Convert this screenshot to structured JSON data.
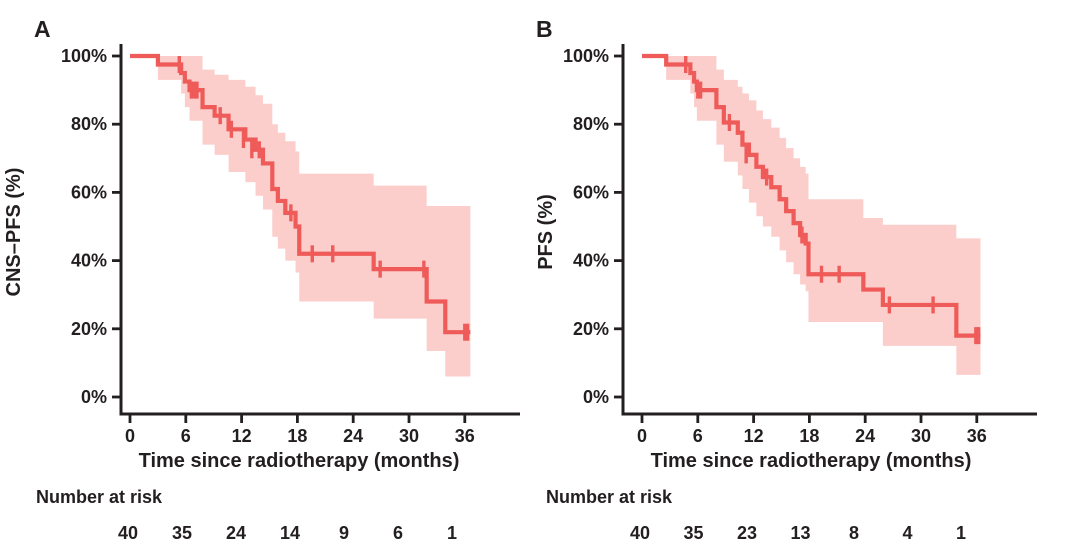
{
  "figure": {
    "background": "#ffffff",
    "description": "Kaplan-Meier survival curves with 95% confidence bands"
  },
  "colors": {
    "curve": "#EE5B59",
    "band": "#FBCDCB",
    "axis": "#231F20",
    "text": "#231F20"
  },
  "chart_data": [
    {
      "type": "line",
      "subtype": "kaplan-meier-step",
      "panel_label": "A",
      "ylabel": "CNS–PFS (%)",
      "xlabel": "Time since radiotherapy (months)",
      "xlim": [
        0,
        38
      ],
      "ylim": [
        0,
        100
      ],
      "x_ticks": [
        0,
        6,
        12,
        18,
        24,
        30,
        36
      ],
      "y_ticks": [
        [
          0,
          "0%"
        ],
        [
          20,
          "20%"
        ],
        [
          40,
          "40%"
        ],
        [
          60,
          "60%"
        ],
        [
          80,
          "80%"
        ],
        [
          100,
          "100%"
        ]
      ],
      "grid": false,
      "legend": "none",
      "end_time": 36.6,
      "steps": [
        [
          0,
          100
        ],
        [
          3,
          97.5
        ],
        [
          5.5,
          95
        ],
        [
          5.9,
          92.5
        ],
        [
          6.4,
          90
        ],
        [
          7.8,
          85
        ],
        [
          9.1,
          82.5
        ],
        [
          10.6,
          78.5
        ],
        [
          12.4,
          75.5
        ],
        [
          13.5,
          72.5
        ],
        [
          14.3,
          68.5
        ],
        [
          15.3,
          61
        ],
        [
          15.9,
          57.5
        ],
        [
          16.7,
          54
        ],
        [
          17.8,
          50
        ],
        [
          18.2,
          42
        ],
        [
          26.2,
          37.5
        ],
        [
          31.9,
          28
        ],
        [
          33.9,
          19
        ]
      ],
      "ci": [
        [
          3,
          93,
          100
        ],
        [
          5.5,
          89,
          100
        ],
        [
          5.9,
          85,
          100
        ],
        [
          6.4,
          81,
          100
        ],
        [
          7.8,
          74,
          96
        ],
        [
          9.1,
          71,
          94.5
        ],
        [
          10.6,
          66,
          93
        ],
        [
          12.4,
          63,
          91
        ],
        [
          13.5,
          59,
          88.5
        ],
        [
          14.3,
          55,
          86
        ],
        [
          15.3,
          47,
          80
        ],
        [
          15.9,
          43.5,
          77.5
        ],
        [
          16.7,
          40,
          75
        ],
        [
          17.8,
          36.5,
          72
        ],
        [
          18.2,
          28,
          65.5
        ],
        [
          26.2,
          23,
          62
        ],
        [
          31.9,
          13.5,
          56
        ],
        [
          33.9,
          6,
          56
        ]
      ],
      "censors": [
        [
          5.3,
          97.5
        ],
        [
          6.6,
          90
        ],
        [
          6.9,
          90
        ],
        [
          7.2,
          90
        ],
        [
          9.7,
          82.5
        ],
        [
          10.9,
          78.5
        ],
        [
          12.2,
          75.5
        ],
        [
          13.1,
          72.5
        ],
        [
          13.9,
          72.5
        ],
        [
          17.3,
          54
        ],
        [
          19.6,
          42
        ],
        [
          21.8,
          42
        ],
        [
          26.9,
          37.5
        ],
        [
          31.6,
          37.5
        ],
        [
          36.0,
          19
        ],
        [
          36.3,
          19
        ]
      ],
      "number_at_risk": {
        "label": "Number at risk",
        "times": [
          0,
          6,
          12,
          18,
          24,
          30,
          36
        ],
        "values": [
          40,
          35,
          24,
          14,
          9,
          6,
          1
        ]
      }
    },
    {
      "type": "line",
      "subtype": "kaplan-meier-step",
      "panel_label": "B",
      "ylabel": "PFS (%)",
      "xlabel": "Time since radiotherapy (months)",
      "xlim": [
        0,
        38
      ],
      "ylim": [
        0,
        100
      ],
      "x_ticks": [
        0,
        6,
        12,
        18,
        24,
        30,
        36
      ],
      "y_ticks": [
        [
          0,
          "0%"
        ],
        [
          20,
          "20%"
        ],
        [
          40,
          "40%"
        ],
        [
          60,
          "60%"
        ],
        [
          80,
          "80%"
        ],
        [
          100,
          "100%"
        ]
      ],
      "grid": false,
      "legend": "none",
      "end_time": 36.4,
      "steps": [
        [
          0,
          100
        ],
        [
          2.6,
          97.5
        ],
        [
          5.2,
          95
        ],
        [
          5.6,
          92.5
        ],
        [
          5.9,
          90
        ],
        [
          8.0,
          85
        ],
        [
          8.8,
          80.5
        ],
        [
          10.3,
          77.5
        ],
        [
          10.8,
          74
        ],
        [
          11.5,
          71
        ],
        [
          12.3,
          67.5
        ],
        [
          13.0,
          64.5
        ],
        [
          13.9,
          61.5
        ],
        [
          14.8,
          58
        ],
        [
          15.5,
          54.5
        ],
        [
          16.3,
          51
        ],
        [
          17.0,
          47.5
        ],
        [
          17.6,
          45
        ],
        [
          17.9,
          36
        ],
        [
          23.8,
          31.5
        ],
        [
          25.9,
          27
        ],
        [
          33.8,
          18
        ]
      ],
      "ci": [
        [
          2.6,
          93,
          100
        ],
        [
          5.2,
          89,
          100
        ],
        [
          5.6,
          85,
          100
        ],
        [
          5.9,
          81,
          100
        ],
        [
          8.0,
          74,
          96
        ],
        [
          8.8,
          69,
          93
        ],
        [
          10.3,
          65,
          91
        ],
        [
          10.8,
          61,
          89
        ],
        [
          11.5,
          57,
          87
        ],
        [
          12.3,
          53,
          84
        ],
        [
          13.0,
          50,
          81.5
        ],
        [
          13.9,
          47,
          79
        ],
        [
          14.8,
          43,
          76
        ],
        [
          15.5,
          39.5,
          73
        ],
        [
          16.3,
          36,
          70
        ],
        [
          17.0,
          33,
          67.5
        ],
        [
          17.6,
          31,
          65.5
        ],
        [
          17.9,
          22,
          58
        ],
        [
          23.8,
          22,
          52.5
        ],
        [
          25.9,
          15,
          50.5
        ],
        [
          33.8,
          6.5,
          46.5
        ]
      ],
      "censors": [
        [
          4.7,
          97.5
        ],
        [
          6.0,
          90
        ],
        [
          6.3,
          90
        ],
        [
          9.4,
          80.5
        ],
        [
          11.2,
          71
        ],
        [
          13.4,
          64.5
        ],
        [
          17.2,
          47.5
        ],
        [
          19.3,
          36
        ],
        [
          21.2,
          36
        ],
        [
          26.6,
          27
        ],
        [
          31.3,
          27
        ],
        [
          35.9,
          18
        ],
        [
          36.2,
          18
        ]
      ],
      "number_at_risk": {
        "label": "Number at risk",
        "times": [
          0,
          6,
          12,
          18,
          24,
          30,
          36
        ],
        "values": [
          40,
          35,
          23,
          13,
          8,
          4,
          1
        ]
      }
    }
  ]
}
